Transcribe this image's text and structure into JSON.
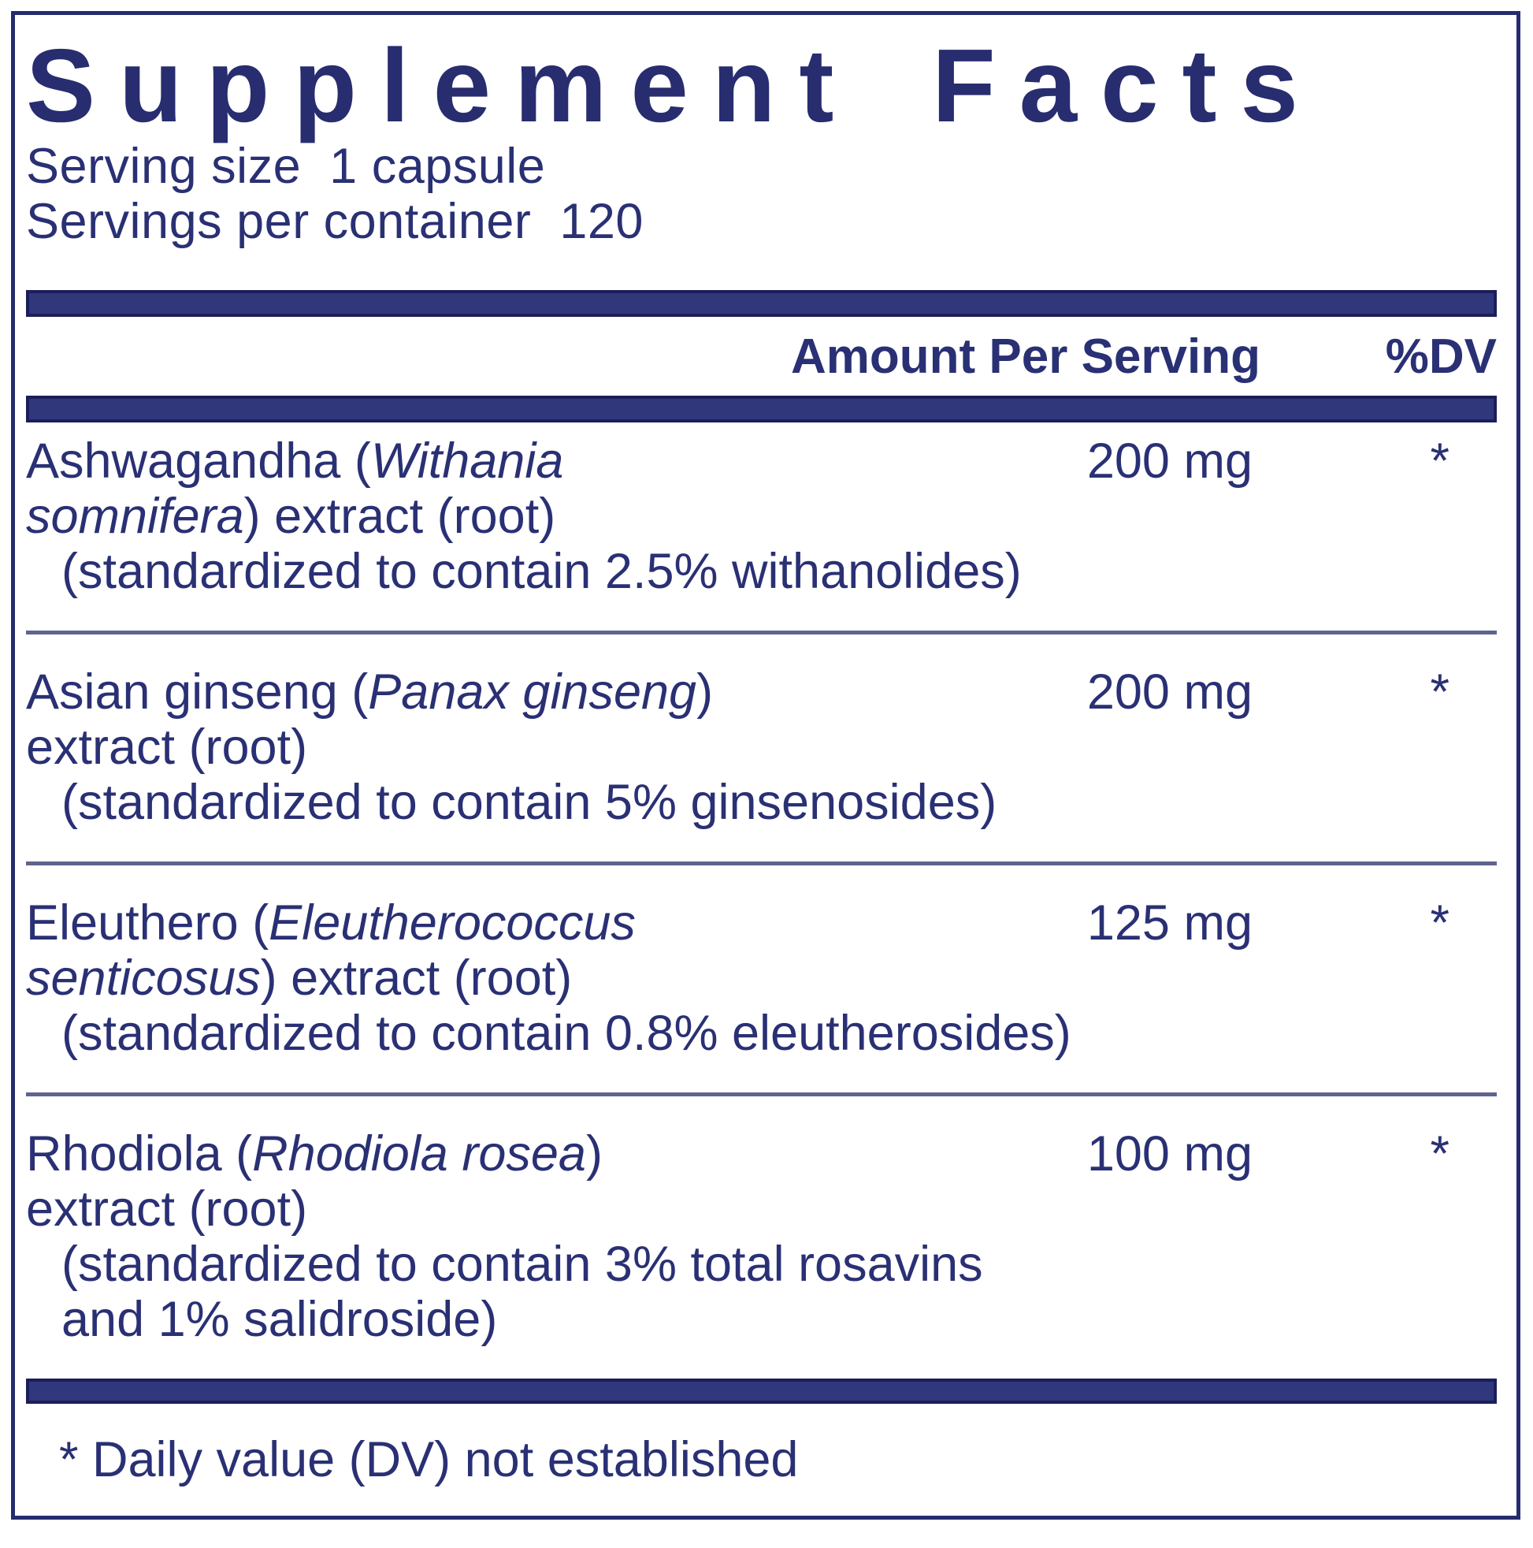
{
  "title": "Supplement Facts",
  "serving_size_line": "Serving size  1 capsule",
  "servings_per_container_line": "Servings per container  120",
  "columns": {
    "amount_header": "Amount Per Serving",
    "dv_header": "%DV"
  },
  "rows": [
    {
      "name_lines": [
        [
          {
            "t": "Ashwagandha ("
          },
          {
            "t": "Withania",
            "i": true
          }
        ],
        [
          {
            "t": "somnifera",
            "i": true
          },
          {
            "t": ") extract (root)"
          }
        ]
      ],
      "detail_lines": [
        "(standardized to contain 2.5% withanolides)"
      ],
      "amount": "200 mg",
      "dv": "*"
    },
    {
      "name_lines": [
        [
          {
            "t": "Asian ginseng ("
          },
          {
            "t": "Panax ginseng",
            "i": true
          },
          {
            "t": ")"
          }
        ],
        [
          {
            "t": "extract (root)"
          }
        ]
      ],
      "detail_lines": [
        "(standardized to contain 5% ginsenosides)"
      ],
      "amount": "200 mg",
      "dv": "*"
    },
    {
      "name_lines": [
        [
          {
            "t": "Eleuthero ("
          },
          {
            "t": "Eleutherococcus",
            "i": true
          }
        ],
        [
          {
            "t": "senticosus",
            "i": true
          },
          {
            "t": ") extract (root)"
          }
        ]
      ],
      "detail_lines": [
        "(standardized to contain 0.8% eleutherosides)"
      ],
      "amount": "125 mg",
      "dv": "*"
    },
    {
      "name_lines": [
        [
          {
            "t": "Rhodiola ("
          },
          {
            "t": "Rhodiola rosea",
            "i": true
          },
          {
            "t": ")"
          }
        ],
        [
          {
            "t": "extract (root)"
          }
        ]
      ],
      "detail_lines": [
        "(standardized to contain 3% total rosavins",
        "and 1% salidroside)"
      ],
      "amount": "100 mg",
      "dv": "*"
    }
  ],
  "footnote": "* Daily value (DV) not established",
  "colors": {
    "text": "#2A3074",
    "bar_fill": "#31377B",
    "bar_border": "#1A1E5A",
    "separator": "#5F6390",
    "outer_border": "#252C6E"
  }
}
